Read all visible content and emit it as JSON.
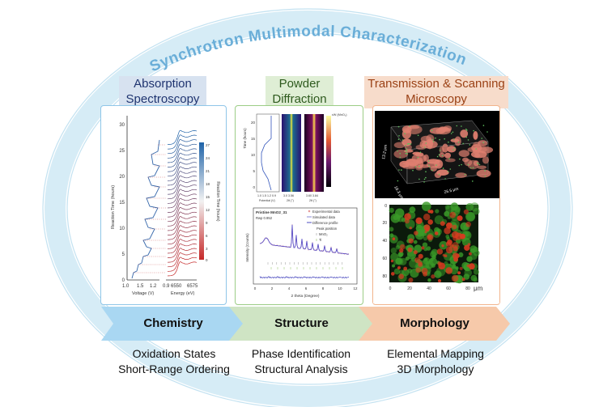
{
  "title": "Synchrotron Multimodal Characterization",
  "colors": {
    "ring": "#d6ecf6",
    "absorption_header_bg": "#d7e2f0",
    "absorption_header_text": "#1f3470",
    "diffraction_header_bg": "#dfeed5",
    "diffraction_header_text": "#2e5a1e",
    "microscopy_header_bg": "#f7dccb",
    "microscopy_header_text": "#9b4216",
    "chem_arrow": "#a9d7f2",
    "struct_arrow": "#cfe4c4",
    "morph_arrow": "#f6c9aa"
  },
  "panels": {
    "absorption": {
      "title_line1": "Absorption",
      "title_line2": "Spectroscopy",
      "left_axis_label": "Reaction Time (hours)",
      "left_ticks": [
        "0",
        "5",
        "10",
        "15",
        "20",
        "25",
        "30"
      ],
      "voltage_ticks": [
        "1.0",
        "1.5",
        "1.2"
      ],
      "voltage_label": "Voltage (V)",
      "energy_ticks": [
        "0.9 6550",
        "6575"
      ],
      "energy_label": "Energy (eV)",
      "colorbar_label": "Reaction Time (hours)",
      "colorbar_ticks": [
        "27",
        "24",
        "21",
        "18",
        "15",
        "12",
        "9",
        "6",
        "3",
        "0"
      ]
    },
    "diffraction": {
      "title_line1": "Powder",
      "title_line2": "Diffraction",
      "top_ylabel": "Time (hours)",
      "top_yticks": [
        "20",
        "15",
        "10",
        "5",
        "0"
      ],
      "top_xlabels": [
        "Potential (V)",
        "2θ (°)",
        "2θ (°)"
      ],
      "top_xticks_a": "1.0 1.5 1.2 0.9",
      "top_xticks_b": "3.0 3.56",
      "top_xticks_c": "3.60 3.84",
      "colorbar_title": "εW (MnO₂)",
      "sample_label": "Pristine MnO2_31",
      "rwp_label": "Rwp 0.952",
      "legend": [
        "Experimental data",
        "Simulated data",
        "Difference profile",
        "Peak position",
        "MnO₂",
        "Ti"
      ],
      "ylabel": "Intensity (Counts)",
      "xlabel": "2 theta (Degree)",
      "xticks": [
        "0",
        "2",
        "4",
        "6",
        "8",
        "10",
        "12"
      ]
    },
    "microscopy": {
      "title_line1": "Transmission & Scanning",
      "title_line2": "Microscopy",
      "dim_a": "13.2 μm",
      "dim_b": "18.3 μm",
      "dim_c": "26.5 μm",
      "map_yticks": [
        "0",
        "20",
        "40",
        "60",
        "80"
      ],
      "map_xticks": [
        "0",
        "20",
        "40",
        "60",
        "80"
      ],
      "map_unit": "μm"
    }
  },
  "categories": [
    {
      "label": "Chemistry",
      "line1": "Oxidation States",
      "line2": "Short-Range Ordering"
    },
    {
      "label": "Structure",
      "line1": "Phase Identification",
      "line2": "Structural Analysis"
    },
    {
      "label": "Morphology",
      "line1": "Elemental Mapping",
      "line2": "3D Morphology"
    }
  ]
}
